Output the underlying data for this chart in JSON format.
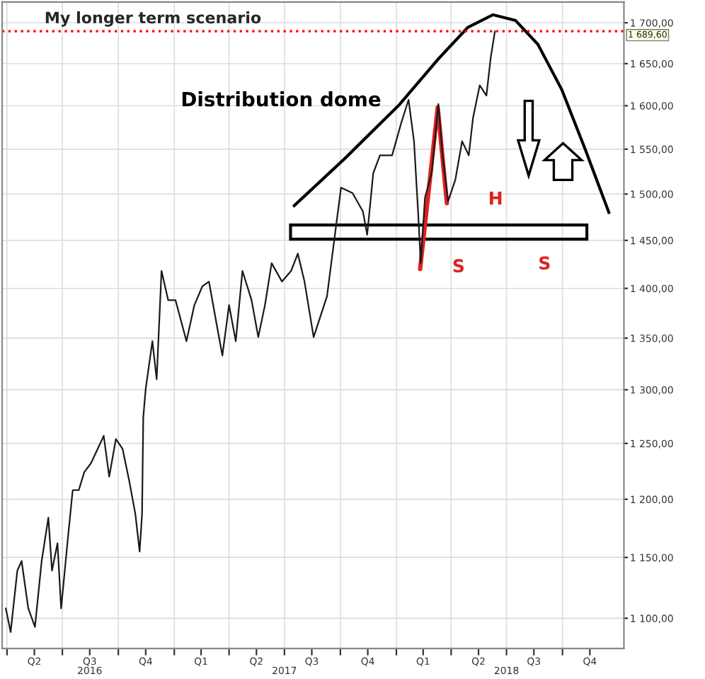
{
  "chart_data": {
    "type": "line",
    "title": "My longer term scenario",
    "annotations": [
      "Distribution dome",
      "H",
      "S",
      "S"
    ],
    "series": [
      {
        "color": "#1a1a1a",
        "x": [
          "2016-03-30",
          "2016-04-07",
          "2016-04-18",
          "2016-04-25",
          "2016-05-06",
          "2016-05-17",
          "2016-05-28",
          "2016-06-08",
          "2016-06-14",
          "2016-06-23",
          "2016-06-29",
          "2016-07-11",
          "2016-07-18",
          "2016-07-28",
          "2016-08-06",
          "2016-08-17",
          "2016-08-28",
          "2016-09-07",
          "2016-09-16",
          "2016-09-27",
          "2016-10-08",
          "2016-10-19",
          "2016-10-29",
          "2016-11-05",
          "2016-11-09",
          "2016-11-11",
          "2016-11-15",
          "2016-11-26",
          "2016-12-03",
          "2016-12-11",
          "2016-12-22",
          "2017-01-03",
          "2017-01-21",
          "2017-02-03",
          "2017-02-16",
          "2017-02-27",
          "2017-03-10",
          "2017-03-21",
          "2017-04-01",
          "2017-04-12",
          "2017-04-23",
          "2017-05-08",
          "2017-05-19",
          "2017-05-30",
          "2017-06-10",
          "2017-06-27",
          "2017-07-12",
          "2017-07-23",
          "2017-08-03",
          "2017-08-18",
          "2017-09-09",
          "2017-09-22",
          "2017-10-02",
          "2017-10-21",
          "2017-11-07",
          "2017-11-14",
          "2017-11-24",
          "2017-12-05",
          "2017-12-25",
          "2018-01-09",
          "2018-01-21",
          "2018-01-30",
          "2018-02-06",
          "2018-02-10",
          "2018-02-17",
          "2018-02-28",
          "2018-03-11",
          "2018-03-18",
          "2018-03-27",
          "2018-04-08",
          "2018-04-19",
          "2018-04-30",
          "2018-05-07",
          "2018-05-18",
          "2018-05-29",
          "2018-06-05",
          "2018-06-12"
        ],
        "values": [
          1108,
          1089,
          1139,
          1147,
          1108,
          1093,
          1147,
          1184,
          1139,
          1162,
          1108,
          1171,
          1208,
          1208,
          1224,
          1232,
          1245,
          1257,
          1220,
          1254,
          1245,
          1216,
          1187,
          1155,
          1187,
          1274,
          1301,
          1347,
          1310,
          1418,
          1388,
          1388,
          1347,
          1383,
          1402,
          1407,
          1369,
          1333,
          1383,
          1347,
          1418,
          1388,
          1351,
          1383,
          1426,
          1407,
          1418,
          1436,
          1407,
          1351,
          1392,
          1456,
          1507,
          1501,
          1481,
          1456,
          1523,
          1543,
          1543,
          1580,
          1607,
          1559,
          1477,
          1426,
          1496,
          1523,
          1602,
          1543,
          1492,
          1516,
          1559,
          1543,
          1586,
          1624,
          1612,
          1657,
          1689.6
        ]
      },
      {
        "color": "#e02020",
        "x": [
          "2018-02-09",
          "2018-03-10",
          "2018-03-25"
        ],
        "values": [
          1420,
          1598,
          1490
        ]
      }
    ],
    "log": true,
    "ylim": [
      1076,
      1726
    ],
    "yticks": [
      {
        "value": 1100,
        "label": "1 100,00"
      },
      {
        "value": 1150,
        "label": "1 150,00"
      },
      {
        "value": 1200,
        "label": "1 200,00"
      },
      {
        "value": 1250,
        "label": "1 250,00"
      },
      {
        "value": 1300,
        "label": "1 300,00"
      },
      {
        "value": 1350,
        "label": "1 350,00"
      },
      {
        "value": 1400,
        "label": "1 400,00"
      },
      {
        "value": 1450,
        "label": "1 450,00"
      },
      {
        "value": 1500,
        "label": "1 500,00"
      },
      {
        "value": 1550,
        "label": "1 550,00"
      },
      {
        "value": 1600,
        "label": "1 600,00"
      },
      {
        "value": 1650,
        "label": "1 650,00"
      },
      {
        "value": 1700,
        "label": "1 700,00"
      }
    ],
    "xlim": [
      "2016-03-24",
      "2019-01-10"
    ],
    "xticks": [
      {
        "value": "2016-04-01",
        "label": null
      },
      {
        "value": "2016-05-16",
        "label": "Q2"
      },
      {
        "value": "2016-07-01",
        "label": null
      },
      {
        "value": "2016-08-15",
        "label": "Q3"
      },
      {
        "value": "2016-10-01",
        "label": null
      },
      {
        "value": "2016-11-15",
        "label": "Q4"
      },
      {
        "value": "2017-01-01",
        "label": null
      },
      {
        "value": "2017-02-14",
        "label": "Q1"
      },
      {
        "value": "2017-04-01",
        "label": null
      },
      {
        "value": "2017-05-16",
        "label": "Q2"
      },
      {
        "value": "2017-07-01",
        "label": null
      },
      {
        "value": "2017-08-15",
        "label": "Q3"
      },
      {
        "value": "2017-10-01",
        "label": null
      },
      {
        "value": "2017-11-15",
        "label": "Q4"
      },
      {
        "value": "2018-01-01",
        "label": null
      },
      {
        "value": "2018-02-14",
        "label": "Q1"
      },
      {
        "value": "2018-04-01",
        "label": null
      },
      {
        "value": "2018-05-16",
        "label": "Q2"
      },
      {
        "value": "2018-07-01",
        "label": null
      },
      {
        "value": "2018-08-15",
        "label": "Q3"
      },
      {
        "value": "2018-10-01",
        "label": null
      },
      {
        "value": "2018-11-15",
        "label": "Q4"
      }
    ],
    "x2lim": [
      "2016-03-24",
      "2019-01-10"
    ],
    "x2ticks": [
      {
        "value": "2016-08-15",
        "label": "2016"
      },
      {
        "value": "2017-07-01",
        "label": "2017"
      },
      {
        "value": "2018-07-01",
        "label": "2018"
      }
    ],
    "ref_lines": [
      {
        "axis": "y",
        "value": 1689.6,
        "label": "1 689,60",
        "color": "#ff0000",
        "line_style": "dotted"
      }
    ],
    "grid": true
  }
}
